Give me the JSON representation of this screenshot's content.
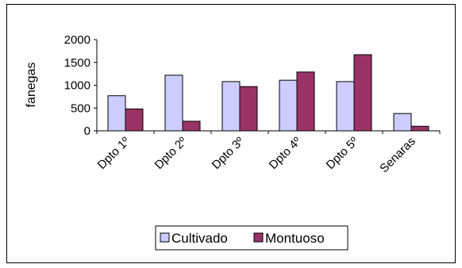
{
  "chart_data": {
    "type": "bar",
    "categories": [
      "Dpto 1º",
      "Dpto 2º",
      "Dpto 3º",
      "Dpto 4º",
      "Dpto 5º",
      "Senaras"
    ],
    "series": [
      {
        "name": "Cultivado",
        "values": [
          770,
          1220,
          1080,
          1110,
          1080,
          380
        ],
        "color": "#ccccff"
      },
      {
        "name": "Montuoso",
        "values": [
          480,
          210,
          970,
          1290,
          1670,
          100
        ],
        "color": "#993366"
      }
    ],
    "title": "",
    "xlabel": "",
    "ylabel": "fanegas",
    "ylim": [
      0,
      2000
    ],
    "yticks": [
      0,
      500,
      1000,
      1500,
      2000
    ],
    "grid": false,
    "legend_position": "bottom"
  }
}
